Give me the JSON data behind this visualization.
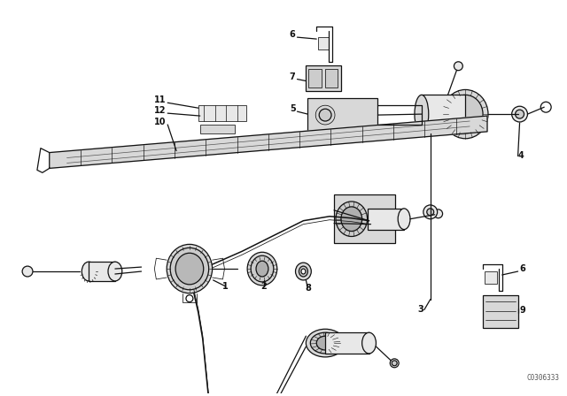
{
  "background_color": "#ffffff",
  "line_color": "#111111",
  "figure_width": 6.4,
  "figure_height": 4.48,
  "dpi": 100,
  "watermark": "C0306333",
  "lw": 0.9,
  "lw_thin": 0.55,
  "lw_cable": 1.1
}
